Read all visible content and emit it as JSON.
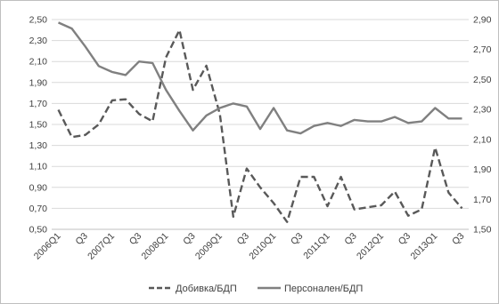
{
  "chart_data": {
    "type": "line",
    "categories": [
      "2006Q1",
      "Q2",
      "Q3",
      "Q4",
      "2007Q1",
      "Q2",
      "Q3",
      "Q4",
      "2008Q1",
      "Q2",
      "Q3",
      "Q4",
      "2009Q1",
      "Q2",
      "Q3",
      "Q4",
      "2010Q1",
      "Q2",
      "Q3",
      "Q4",
      "2011Q1",
      "Q2",
      "Q3",
      "Q4",
      "2012Q1",
      "Q2",
      "Q3",
      "Q4",
      "2013Q1",
      "Q2",
      "Q3"
    ],
    "x_tick_labels": [
      "2006Q1",
      "Q3",
      "2007Q1",
      "Q3",
      "2008Q1",
      "Q3",
      "2009Q1",
      "Q3",
      "2010Q1",
      "Q3",
      "2011Q1",
      "Q3",
      "2012Q1",
      "Q3",
      "2013Q1",
      "Q3"
    ],
    "y_left": {
      "ticks": [
        "2,50",
        "2,30",
        "2,10",
        "1,90",
        "1,70",
        "1,50",
        "1,30",
        "1,10",
        "0,90",
        "0,70",
        "0,50"
      ],
      "range": [
        0.5,
        2.5
      ]
    },
    "y_right": {
      "ticks": [
        "2,90",
        "2,70",
        "2,50",
        "2,30",
        "2,10",
        "1,90",
        "1,70",
        "1,50"
      ],
      "range": [
        1.5,
        2.9
      ]
    },
    "series": [
      {
        "name": "Добивка/БДП",
        "axis": "left",
        "style": "dashed",
        "color": "#595959",
        "values": [
          1.64,
          1.38,
          1.4,
          1.5,
          1.73,
          1.74,
          1.6,
          1.53,
          2.14,
          2.4,
          1.83,
          2.06,
          1.6,
          0.62,
          1.08,
          0.9,
          0.75,
          0.57,
          1.0,
          1.0,
          0.72,
          1.0,
          0.69,
          0.71,
          0.73,
          0.86,
          0.63,
          0.69,
          1.28,
          0.85,
          0.7
        ]
      },
      {
        "name": "Персонален/БДП",
        "axis": "right",
        "style": "solid",
        "color": "#808080",
        "values": [
          2.88,
          2.84,
          2.72,
          2.59,
          2.55,
          2.53,
          2.62,
          2.61,
          2.43,
          2.29,
          2.16,
          2.26,
          2.31,
          2.34,
          2.32,
          2.17,
          2.31,
          2.16,
          2.14,
          2.19,
          2.21,
          2.19,
          2.23,
          2.22,
          2.22,
          2.25,
          2.21,
          2.22,
          2.31,
          2.24,
          2.24
        ]
      }
    ],
    "legend_position": "bottom",
    "grid": {
      "horizontal": true,
      "vertical": false
    }
  }
}
